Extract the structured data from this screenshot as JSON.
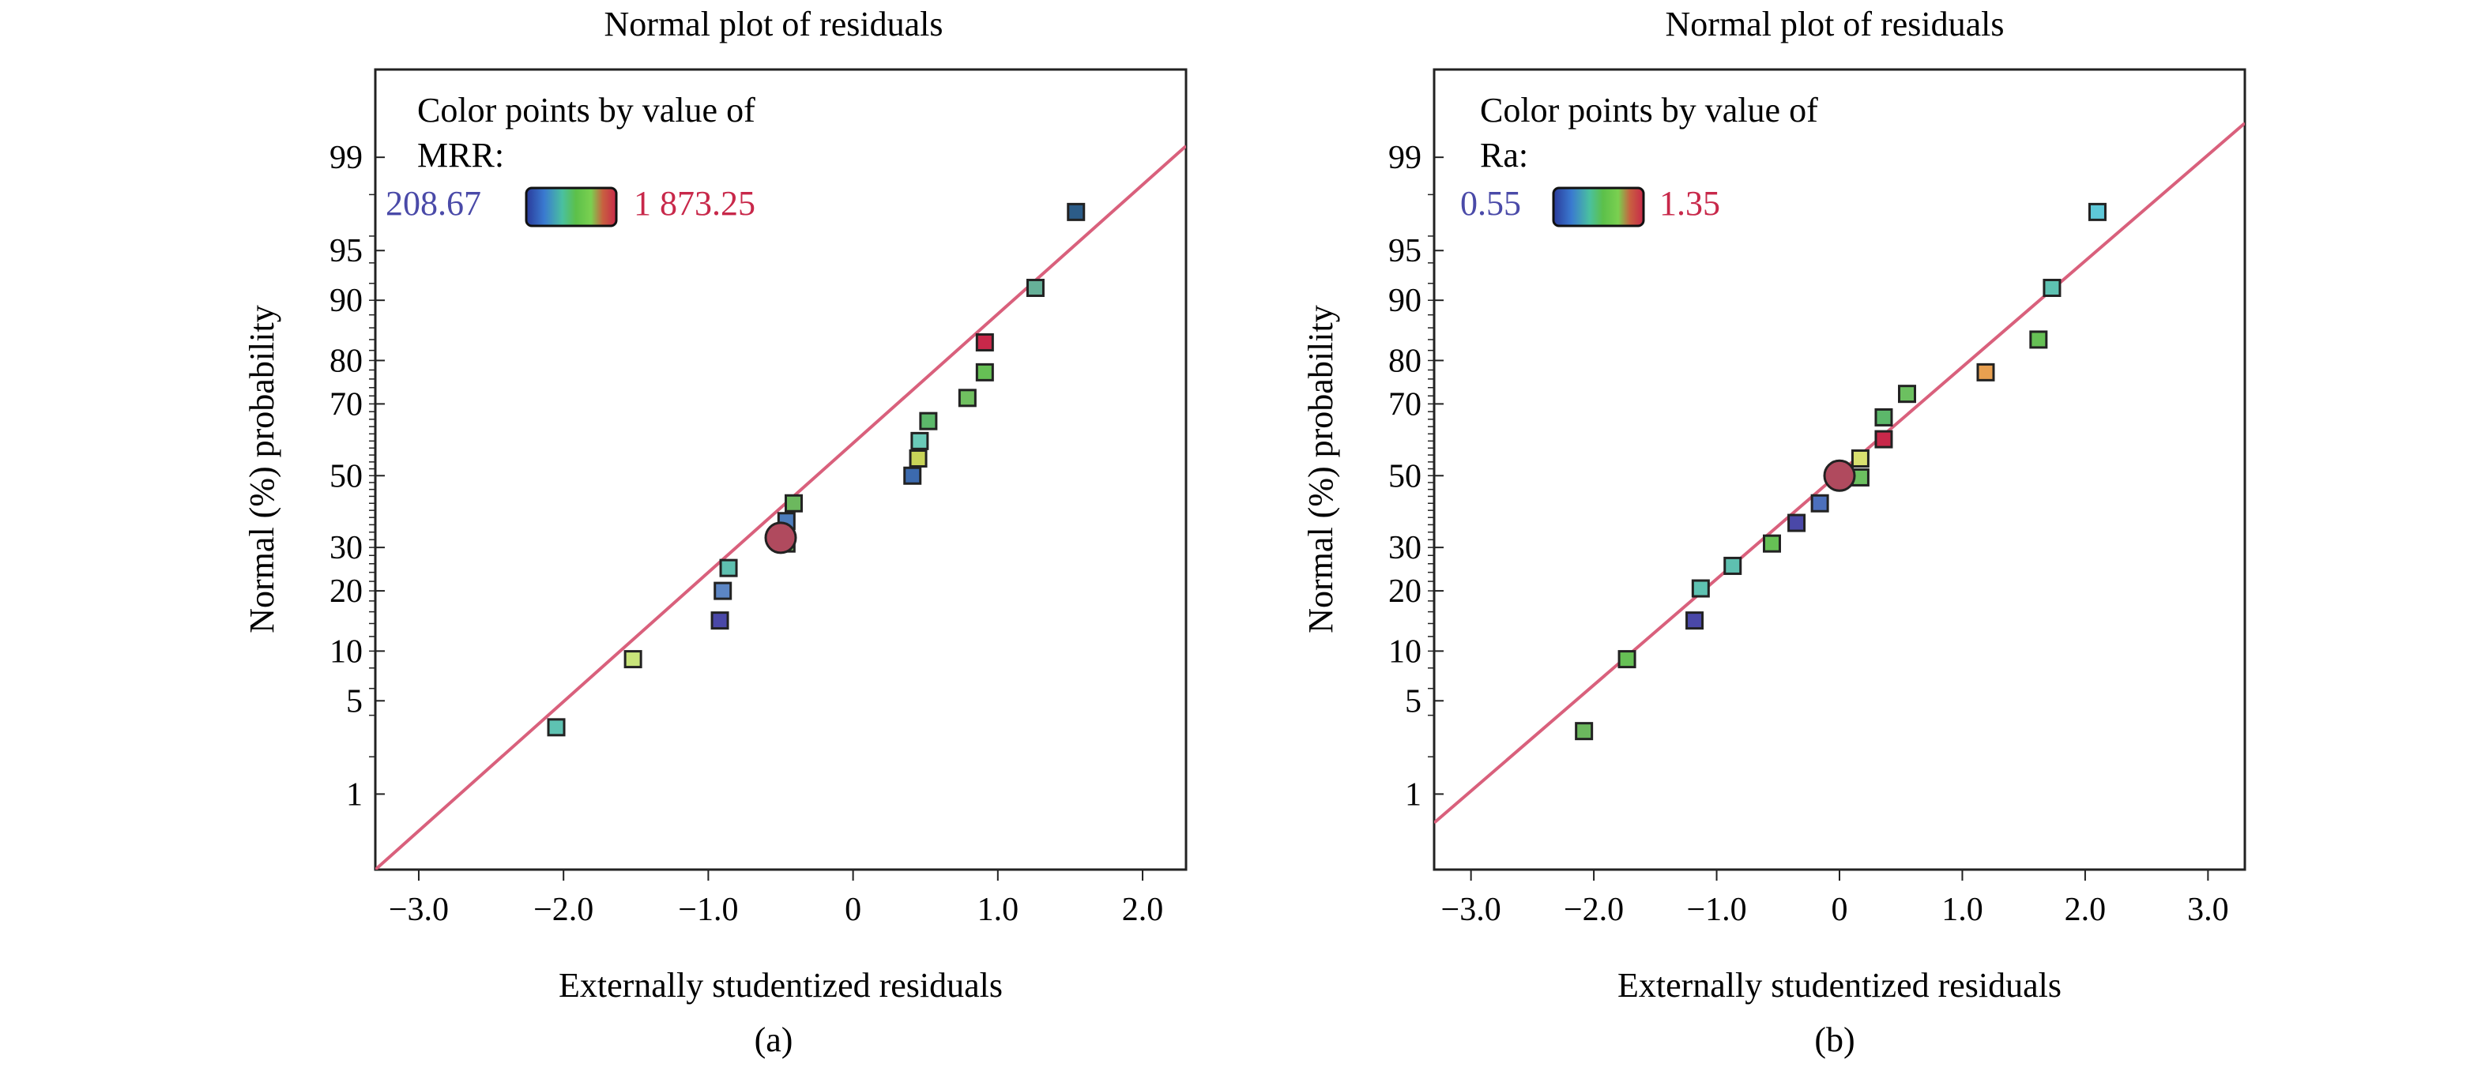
{
  "figure": {
    "captions": [
      "(a)",
      "(b)"
    ]
  },
  "chart_data": [
    {
      "type": "scatter",
      "title": "Normal plot of residuals",
      "xlabel": "Externally studentized residuals",
      "ylabel": "Normal (%) probability",
      "xlim": [
        -3.3,
        2.3
      ],
      "ylim_percent": [
        0.2,
        99.85
      ],
      "y_scale": "normal-probability",
      "x_ticks": [
        "−3.0",
        "−2.0",
        "−1.0",
        "0",
        "1.0",
        "2.0"
      ],
      "x_tick_values": [
        -3,
        -2,
        -1,
        0,
        1,
        2
      ],
      "y_ticks": [
        "1",
        "5",
        "10",
        "20",
        "30",
        "50",
        "70",
        "80",
        "90",
        "95",
        "99"
      ],
      "y_tick_values": [
        1,
        5,
        10,
        20,
        30,
        50,
        70,
        80,
        90,
        95,
        99
      ],
      "legend": {
        "title_line1": "Color points by value of",
        "title_line2": "MRR:",
        "min_label": "208.67",
        "max_label": "1 873.25",
        "min_color": "#4a4aa8",
        "max_color": "#c8284a"
      },
      "reference_line": {
        "x": [
          -3.3,
          2.3
        ],
        "p": [
          0.2,
          99.2
        ],
        "color": "#d9607c"
      },
      "centroid": {
        "x": -0.5,
        "p": 32.5,
        "color": "#b04a5e"
      },
      "points": [
        {
          "x": -2.05,
          "p": 3.3,
          "color": "#5ec2b2"
        },
        {
          "x": -1.52,
          "p": 9.0,
          "color": "#c8e47a"
        },
        {
          "x": -0.92,
          "p": 14.5,
          "color": "#4a48a8"
        },
        {
          "x": -0.9,
          "p": 20.0,
          "color": "#5c86c4"
        },
        {
          "x": -0.86,
          "p": 25.0,
          "color": "#5ec0b0"
        },
        {
          "x": -0.46,
          "p": 31.0,
          "color": "#7cc068"
        },
        {
          "x": -0.46,
          "p": 37.0,
          "color": "#4c7cbc"
        },
        {
          "x": -0.41,
          "p": 42.0,
          "color": "#6cb85e"
        },
        {
          "x": 0.41,
          "p": 50.0,
          "color": "#3c6aae"
        },
        {
          "x": 0.45,
          "p": 55.0,
          "color": "#c8d458"
        },
        {
          "x": 0.46,
          "p": 60.0,
          "color": "#6acab8"
        },
        {
          "x": 0.52,
          "p": 65.5,
          "color": "#5cb86a"
        },
        {
          "x": 0.79,
          "p": 71.5,
          "color": "#70c060"
        },
        {
          "x": 0.91,
          "p": 77.5,
          "color": "#66c055"
        },
        {
          "x": 0.91,
          "p": 83.5,
          "color": "#c8284a"
        },
        {
          "x": 1.26,
          "p": 91.5,
          "color": "#66b098"
        },
        {
          "x": 1.54,
          "p": 97.3,
          "color": "#2c5c88"
        }
      ]
    },
    {
      "type": "scatter",
      "title": "Normal plot of residuals",
      "xlabel": "Externally studentized residuals",
      "ylabel": "Normal (%) probability",
      "xlim": [
        -3.3,
        3.3
      ],
      "ylim_percent": [
        0.2,
        99.85
      ],
      "y_scale": "normal-probability",
      "x_ticks": [
        "−3.0",
        "−2.0",
        "−1.0",
        "0",
        "1.0",
        "2.0",
        "3.0"
      ],
      "x_tick_values": [
        -3,
        -2,
        -1,
        0,
        1,
        2,
        3
      ],
      "y_ticks": [
        "1",
        "5",
        "10",
        "20",
        "30",
        "50",
        "70",
        "80",
        "90",
        "95",
        "99"
      ],
      "y_tick_values": [
        1,
        5,
        10,
        20,
        30,
        50,
        70,
        80,
        90,
        95,
        99
      ],
      "legend": {
        "title_line1": "Color points by value of",
        "title_line2": "Ra:",
        "min_label": "0.55",
        "max_label": "1.35",
        "min_color": "#4a4aa8",
        "max_color": "#c8284a"
      },
      "reference_line": {
        "x": [
          -3.3,
          3.3
        ],
        "p": [
          0.56,
          99.5
        ],
        "color": "#d9607c"
      },
      "centroid": {
        "x": 0.0,
        "p": 50.0,
        "color": "#b04a5e"
      },
      "points": [
        {
          "x": -2.08,
          "p": 3.1,
          "color": "#6cb85e"
        },
        {
          "x": -1.73,
          "p": 9.0,
          "color": "#66c055"
        },
        {
          "x": -1.18,
          "p": 14.5,
          "color": "#4a48a8"
        },
        {
          "x": -1.13,
          "p": 20.5,
          "color": "#5ec2b2"
        },
        {
          "x": -0.87,
          "p": 25.5,
          "color": "#5ec0b0"
        },
        {
          "x": -0.55,
          "p": 31.0,
          "color": "#66c055"
        },
        {
          "x": -0.35,
          "p": 36.5,
          "color": "#4a48a8"
        },
        {
          "x": -0.16,
          "p": 42.0,
          "color": "#4c70bc"
        },
        {
          "x": 0.17,
          "p": 49.5,
          "color": "#6cc060"
        },
        {
          "x": 0.17,
          "p": 55.0,
          "color": "#d8e070"
        },
        {
          "x": 0.36,
          "p": 60.5,
          "color": "#c8284a"
        },
        {
          "x": 0.36,
          "p": 66.5,
          "color": "#5cb86a"
        },
        {
          "x": 0.55,
          "p": 72.5,
          "color": "#6cc060"
        },
        {
          "x": 1.19,
          "p": 77.5,
          "color": "#e8a050"
        },
        {
          "x": 1.62,
          "p": 84.0,
          "color": "#66c055"
        },
        {
          "x": 1.73,
          "p": 91.5,
          "color": "#5ec2b2"
        },
        {
          "x": 2.1,
          "p": 97.3,
          "color": "#5ec8d8"
        }
      ]
    }
  ]
}
